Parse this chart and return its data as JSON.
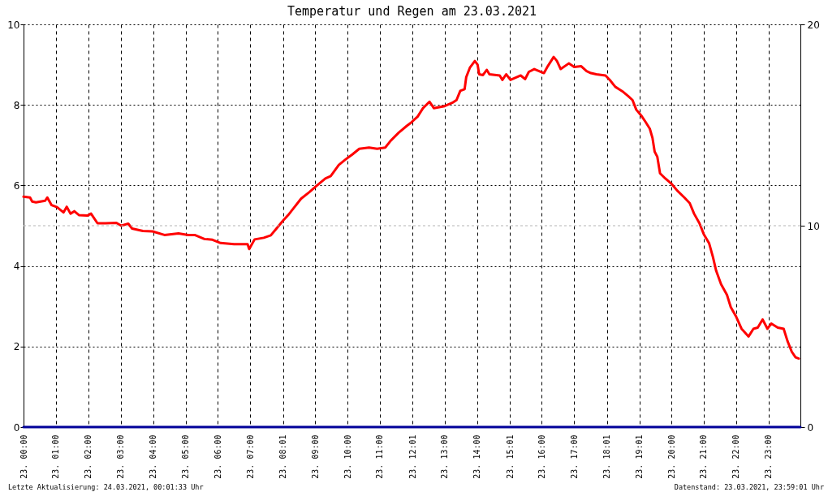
{
  "chart_data": {
    "type": "line",
    "title": "Temperatur und Regen am 23.03.2021",
    "xlim": [
      "2021-03-23T00:00",
      "2021-03-23T23:59"
    ],
    "xticks": [
      {
        "value": "2021-03-23T00:00",
        "label": "23. 00:00"
      },
      {
        "value": "2021-03-23T01:00",
        "label": "23. 01:00"
      },
      {
        "value": "2021-03-23T02:00",
        "label": "23. 02:00"
      },
      {
        "value": "2021-03-23T03:00",
        "label": "23. 03:00"
      },
      {
        "value": "2021-03-23T04:00",
        "label": "23. 04:00"
      },
      {
        "value": "2021-03-23T05:00",
        "label": "23. 05:00"
      },
      {
        "value": "2021-03-23T06:00",
        "label": "23. 06:00"
      },
      {
        "value": "2021-03-23T07:00",
        "label": "23. 07:00"
      },
      {
        "value": "2021-03-23T08:01",
        "label": "23. 08:01"
      },
      {
        "value": "2021-03-23T09:00",
        "label": "23. 09:00"
      },
      {
        "value": "2021-03-23T10:00",
        "label": "23. 10:00"
      },
      {
        "value": "2021-03-23T11:00",
        "label": "23. 11:00"
      },
      {
        "value": "2021-03-23T12:01",
        "label": "23. 12:01"
      },
      {
        "value": "2021-03-23T13:00",
        "label": "23. 13:00"
      },
      {
        "value": "2021-03-23T14:00",
        "label": "23. 14:00"
      },
      {
        "value": "2021-03-23T15:01",
        "label": "23. 15:01"
      },
      {
        "value": "2021-03-23T16:00",
        "label": "23. 16:00"
      },
      {
        "value": "2021-03-23T17:00",
        "label": "23. 17:00"
      },
      {
        "value": "2021-03-23T18:01",
        "label": "23. 18:01"
      },
      {
        "value": "2021-03-23T19:01",
        "label": "23. 19:01"
      },
      {
        "value": "2021-03-23T20:00",
        "label": "23. 20:00"
      },
      {
        "value": "2021-03-23T21:00",
        "label": "23. 21:00"
      },
      {
        "value": "2021-03-23T22:00",
        "label": "23. 22:00"
      },
      {
        "value": "2021-03-23T23:00",
        "label": "23. 23:00"
      }
    ],
    "ylim": [
      0,
      10
    ],
    "yticks": [
      0,
      2,
      4,
      6,
      8,
      10
    ],
    "y2lim": [
      0,
      20
    ],
    "y2ticks": [
      0,
      10,
      20
    ],
    "grid": true,
    "line_style": "solid",
    "ref_lines": [
      {
        "axis": "y2",
        "value": 10,
        "color": "#b4b4b4",
        "line_style": "dashed"
      }
    ],
    "series": [
      {
        "color": "#ff0000",
        "x": [
          "2021-03-23T00:00",
          "2021-03-23T00:12",
          "2021-03-23T00:16",
          "2021-03-23T00:23",
          "2021-03-23T00:40",
          "2021-03-23T00:44",
          "2021-03-23T00:52",
          "2021-03-23T01:02",
          "2021-03-23T01:14",
          "2021-03-23T01:20",
          "2021-03-23T01:27",
          "2021-03-23T01:34",
          "2021-03-23T01:43",
          "2021-03-23T01:58",
          "2021-03-23T02:05",
          "2021-03-23T02:17",
          "2021-03-23T02:32",
          "2021-03-23T02:52",
          "2021-03-23T03:01",
          "2021-03-23T03:14",
          "2021-03-23T03:21",
          "2021-03-23T03:41",
          "2021-03-23T03:59",
          "2021-03-23T04:21",
          "2021-03-23T04:47",
          "2021-03-23T05:05",
          "2021-03-23T05:17",
          "2021-03-23T05:35",
          "2021-03-23T05:50",
          "2021-03-23T06:05",
          "2021-03-23T06:30",
          "2021-03-23T06:55",
          "2021-03-23T06:58",
          "2021-03-23T07:08",
          "2021-03-23T07:25",
          "2021-03-23T07:38",
          "2021-03-23T07:46",
          "2021-03-23T08:01",
          "2021-03-23T08:10",
          "2021-03-23T08:20",
          "2021-03-23T08:34",
          "2021-03-23T08:49",
          "2021-03-23T09:01",
          "2021-03-23T09:19",
          "2021-03-23T09:29",
          "2021-03-23T09:44",
          "2021-03-23T09:56",
          "2021-03-23T10:09",
          "2021-03-23T10:22",
          "2021-03-23T10:40",
          "2021-03-23T10:55",
          "2021-03-23T11:10",
          "2021-03-23T11:20",
          "2021-03-23T11:35",
          "2021-03-23T11:50",
          "2021-03-23T11:57",
          "2021-03-23T12:10",
          "2021-03-23T12:20",
          "2021-03-23T12:32",
          "2021-03-23T12:40",
          "2021-03-23T13:00",
          "2021-03-23T13:14",
          "2021-03-23T13:22",
          "2021-03-23T13:29",
          "2021-03-23T13:37",
          "2021-03-23T13:40",
          "2021-03-23T13:47",
          "2021-03-23T13:56",
          "2021-03-23T14:01",
          "2021-03-23T14:04",
          "2021-03-23T14:11",
          "2021-03-23T14:18",
          "2021-03-23T14:23",
          "2021-03-23T14:42",
          "2021-03-23T14:47",
          "2021-03-23T14:54",
          "2021-03-23T15:02",
          "2021-03-23T15:21",
          "2021-03-23T15:29",
          "2021-03-23T15:36",
          "2021-03-23T15:46",
          "2021-03-23T16:04",
          "2021-03-23T16:11",
          "2021-03-23T16:22",
          "2021-03-23T16:28",
          "2021-03-23T16:35",
          "2021-03-23T16:50",
          "2021-03-23T17:00",
          "2021-03-23T17:13",
          "2021-03-23T17:23",
          "2021-03-23T17:31",
          "2021-03-23T17:41",
          "2021-03-23T17:58",
          "2021-03-23T18:06",
          "2021-03-23T18:16",
          "2021-03-23T18:31",
          "2021-03-23T18:40",
          "2021-03-23T18:48",
          "2021-03-23T18:55",
          "2021-03-23T19:05",
          "2021-03-23T19:12",
          "2021-03-23T19:20",
          "2021-03-23T19:25",
          "2021-03-23T19:29",
          "2021-03-23T19:34",
          "2021-03-23T19:39",
          "2021-03-23T19:49",
          "2021-03-23T20:01",
          "2021-03-23T20:11",
          "2021-03-23T20:24",
          "2021-03-23T20:34",
          "2021-03-23T20:42",
          "2021-03-23T20:52",
          "2021-03-23T21:00",
          "2021-03-23T21:10",
          "2021-03-23T21:17",
          "2021-03-23T21:23",
          "2021-03-23T21:32",
          "2021-03-23T21:43",
          "2021-03-23T21:50",
          "2021-03-23T22:00",
          "2021-03-23T22:10",
          "2021-03-23T22:23",
          "2021-03-23T22:32",
          "2021-03-23T22:40",
          "2021-03-23T22:49",
          "2021-03-23T22:58",
          "2021-03-23T23:05",
          "2021-03-23T23:17",
          "2021-03-23T23:28",
          "2021-03-23T23:35",
          "2021-03-23T23:43",
          "2021-03-23T23:50",
          "2021-03-23T23:56"
        ],
        "values": [
          5.72,
          5.7,
          5.6,
          5.58,
          5.62,
          5.7,
          5.51,
          5.46,
          5.33,
          5.47,
          5.3,
          5.36,
          5.26,
          5.25,
          5.3,
          5.06,
          5.06,
          5.07,
          5.0,
          5.05,
          4.93,
          4.87,
          4.86,
          4.77,
          4.81,
          4.77,
          4.77,
          4.67,
          4.65,
          4.57,
          4.54,
          4.54,
          4.42,
          4.66,
          4.7,
          4.76,
          4.89,
          5.13,
          5.26,
          5.43,
          5.67,
          5.83,
          5.97,
          6.17,
          6.23,
          6.51,
          6.64,
          6.77,
          6.91,
          6.94,
          6.91,
          6.94,
          7.11,
          7.31,
          7.48,
          7.55,
          7.71,
          7.92,
          8.08,
          7.92,
          7.97,
          8.05,
          8.12,
          8.35,
          8.39,
          8.69,
          8.93,
          9.09,
          9.0,
          8.76,
          8.74,
          8.87,
          8.76,
          8.73,
          8.62,
          8.76,
          8.62,
          8.73,
          8.64,
          8.82,
          8.89,
          8.79,
          8.96,
          9.19,
          9.09,
          8.89,
          9.03,
          8.94,
          8.96,
          8.84,
          8.79,
          8.76,
          8.73,
          8.62,
          8.45,
          8.32,
          8.22,
          8.12,
          7.88,
          7.72,
          7.58,
          7.41,
          7.18,
          6.84,
          6.71,
          6.3,
          6.17,
          6.03,
          5.87,
          5.7,
          5.56,
          5.3,
          5.06,
          4.79,
          4.56,
          4.22,
          3.88,
          3.55,
          3.28,
          2.98,
          2.74,
          2.44,
          2.25,
          2.44,
          2.47,
          2.67,
          2.44,
          2.57,
          2.47,
          2.44,
          2.14,
          1.87,
          1.73,
          1.7
        ]
      },
      {
        "color": "#000099",
        "axis": "y2",
        "x": [
          "2021-03-23T00:00",
          "2021-03-23T23:59"
        ],
        "values": [
          0,
          0
        ]
      }
    ],
    "annotations": [
      "Letzte Aktualisierung: 24.03.2021, 00:01:33 Uhr",
      "Datenstand: 23.03.2021, 23:59:01 Uhr"
    ]
  }
}
